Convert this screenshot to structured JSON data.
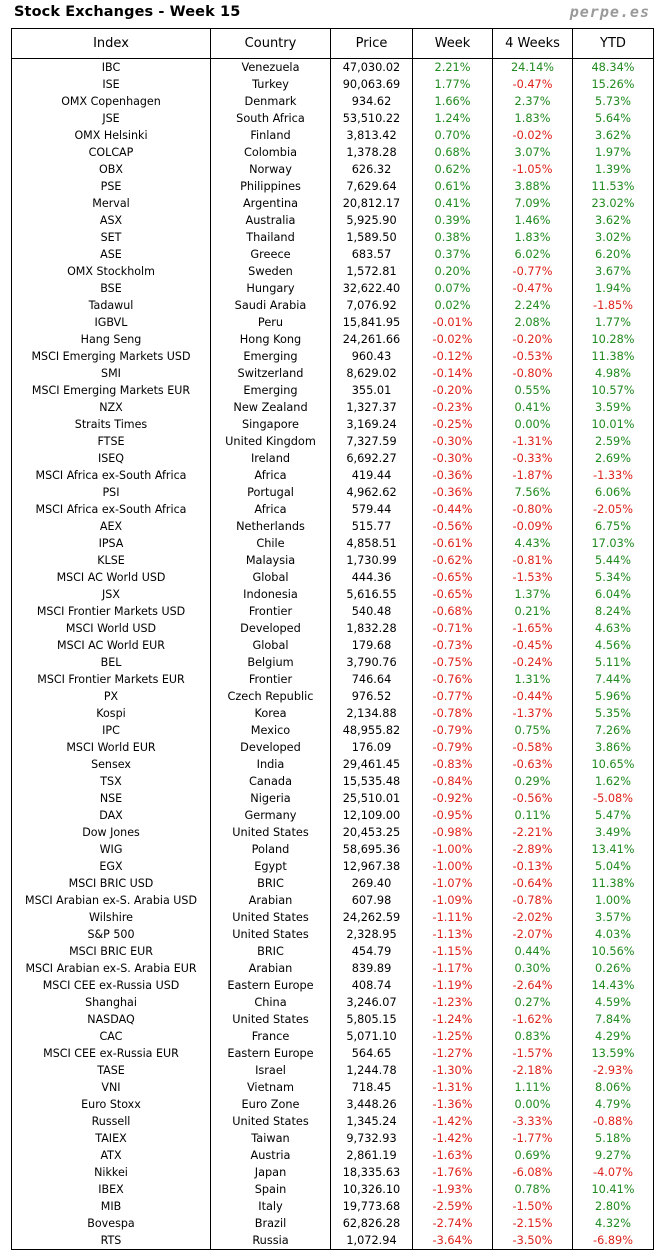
{
  "header": {
    "title": "Stock Exchanges - Week 15",
    "brand": "perpe.es"
  },
  "colors": {
    "positive": "#1f8a1f",
    "negative": "#e0201a"
  },
  "columns": [
    "Index",
    "Country",
    "Price",
    "Week",
    "4 Weeks",
    "YTD"
  ],
  "rows": [
    [
      "IBC",
      "Venezuela",
      "47,030.02",
      "2.21%",
      "24.14%",
      "48.34%"
    ],
    [
      "ISE",
      "Turkey",
      "90,063.69",
      "1.77%",
      "-0.47%",
      "15.26%"
    ],
    [
      "OMX Copenhagen",
      "Denmark",
      "934.62",
      "1.66%",
      "2.37%",
      "5.73%"
    ],
    [
      "JSE",
      "South Africa",
      "53,510.22",
      "1.24%",
      "1.83%",
      "5.64%"
    ],
    [
      "OMX Helsinki",
      "Finland",
      "3,813.42",
      "0.70%",
      "-0.02%",
      "3.62%"
    ],
    [
      "COLCAP",
      "Colombia",
      "1,378.28",
      "0.68%",
      "3.07%",
      "1.97%"
    ],
    [
      "OBX",
      "Norway",
      "626.32",
      "0.62%",
      "-1.05%",
      "1.39%"
    ],
    [
      "PSE",
      "Philippines",
      "7,629.64",
      "0.61%",
      "3.88%",
      "11.53%"
    ],
    [
      "Merval",
      "Argentina",
      "20,812.17",
      "0.41%",
      "7.09%",
      "23.02%"
    ],
    [
      "ASX",
      "Australia",
      "5,925.90",
      "0.39%",
      "1.46%",
      "3.62%"
    ],
    [
      "SET",
      "Thailand",
      "1,589.50",
      "0.38%",
      "1.83%",
      "3.02%"
    ],
    [
      "ASE",
      "Greece",
      "683.57",
      "0.37%",
      "6.02%",
      "6.20%"
    ],
    [
      "OMX Stockholm",
      "Sweden",
      "1,572.81",
      "0.20%",
      "-0.77%",
      "3.67%"
    ],
    [
      "BSE",
      "Hungary",
      "32,622.40",
      "0.07%",
      "-0.47%",
      "1.94%"
    ],
    [
      "Tadawul",
      "Saudi Arabia",
      "7,076.92",
      "0.02%",
      "2.24%",
      "-1.85%"
    ],
    [
      "IGBVL",
      "Peru",
      "15,841.95",
      "-0.01%",
      "2.08%",
      "1.77%"
    ],
    [
      "Hang Seng",
      "Hong Kong",
      "24,261.66",
      "-0.02%",
      "-0.20%",
      "10.28%"
    ],
    [
      "MSCI Emerging Markets USD",
      "Emerging",
      "960.43",
      "-0.12%",
      "-0.53%",
      "11.38%"
    ],
    [
      "SMI",
      "Switzerland",
      "8,629.02",
      "-0.14%",
      "-0.80%",
      "4.98%"
    ],
    [
      "MSCI Emerging Markets EUR",
      "Emerging",
      "355.01",
      "-0.20%",
      "0.55%",
      "10.57%"
    ],
    [
      "NZX",
      "New Zealand",
      "1,327.37",
      "-0.23%",
      "0.41%",
      "3.59%"
    ],
    [
      "Straits Times",
      "Singapore",
      "3,169.24",
      "-0.25%",
      "0.00%",
      "10.01%"
    ],
    [
      "FTSE",
      "United Kingdom",
      "7,327.59",
      "-0.30%",
      "-1.31%",
      "2.59%"
    ],
    [
      "ISEQ",
      "Ireland",
      "6,692.27",
      "-0.30%",
      "-0.33%",
      "2.69%"
    ],
    [
      "MSCI Africa ex-South Africa",
      "Africa",
      "419.44",
      "-0.36%",
      "-1.87%",
      "-1.33%"
    ],
    [
      "PSI",
      "Portugal",
      "4,962.62",
      "-0.36%",
      "7.56%",
      "6.06%"
    ],
    [
      "MSCI Africa ex-South Africa",
      "Africa",
      "579.44",
      "-0.44%",
      "-0.80%",
      "-2.05%"
    ],
    [
      "AEX",
      "Netherlands",
      "515.77",
      "-0.56%",
      "-0.09%",
      "6.75%"
    ],
    [
      "IPSA",
      "Chile",
      "4,858.51",
      "-0.61%",
      "4.43%",
      "17.03%"
    ],
    [
      "KLSE",
      "Malaysia",
      "1,730.99",
      "-0.62%",
      "-0.81%",
      "5.44%"
    ],
    [
      "MSCI AC World USD",
      "Global",
      "444.36",
      "-0.65%",
      "-1.53%",
      "5.34%"
    ],
    [
      "JSX",
      "Indonesia",
      "5,616.55",
      "-0.65%",
      "1.37%",
      "6.04%"
    ],
    [
      "MSCI Frontier Markets USD",
      "Frontier",
      "540.48",
      "-0.68%",
      "0.21%",
      "8.24%"
    ],
    [
      "MSCI World USD",
      "Developed",
      "1,832.28",
      "-0.71%",
      "-1.65%",
      "4.63%"
    ],
    [
      "MSCI AC World EUR",
      "Global",
      "179.68",
      "-0.73%",
      "-0.45%",
      "4.56%"
    ],
    [
      "BEL",
      "Belgium",
      "3,790.76",
      "-0.75%",
      "-0.24%",
      "5.11%"
    ],
    [
      "MSCI Frontier Markets EUR",
      "Frontier",
      "746.64",
      "-0.76%",
      "1.31%",
      "7.44%"
    ],
    [
      "PX",
      "Czech Republic",
      "976.52",
      "-0.77%",
      "-0.44%",
      "5.96%"
    ],
    [
      "Kospi",
      "Korea",
      "2,134.88",
      "-0.78%",
      "-1.37%",
      "5.35%"
    ],
    [
      "IPC",
      "Mexico",
      "48,955.82",
      "-0.79%",
      "0.75%",
      "7.26%"
    ],
    [
      "MSCI World EUR",
      "Developed",
      "176.09",
      "-0.79%",
      "-0.58%",
      "3.86%"
    ],
    [
      "Sensex",
      "India",
      "29,461.45",
      "-0.83%",
      "-0.63%",
      "10.65%"
    ],
    [
      "TSX",
      "Canada",
      "15,535.48",
      "-0.84%",
      "0.29%",
      "1.62%"
    ],
    [
      "NSE",
      "Nigeria",
      "25,510.01",
      "-0.92%",
      "-0.56%",
      "-5.08%"
    ],
    [
      "DAX",
      "Germany",
      "12,109.00",
      "-0.95%",
      "0.11%",
      "5.47%"
    ],
    [
      "Dow Jones",
      "United States",
      "20,453.25",
      "-0.98%",
      "-2.21%",
      "3.49%"
    ],
    [
      "WIG",
      "Poland",
      "58,695.36",
      "-1.00%",
      "-2.89%",
      "13.41%"
    ],
    [
      "EGX",
      "Egypt",
      "12,967.38",
      "-1.00%",
      "-0.13%",
      "5.04%"
    ],
    [
      "MSCI BRIC USD",
      "BRIC",
      "269.40",
      "-1.07%",
      "-0.64%",
      "11.38%"
    ],
    [
      "MSCI Arabian ex-S. Arabia USD",
      "Arabian",
      "607.98",
      "-1.09%",
      "-0.78%",
      "1.00%"
    ],
    [
      "Wilshire",
      "United States",
      "24,262.59",
      "-1.11%",
      "-2.02%",
      "3.57%"
    ],
    [
      "S&P 500",
      "United States",
      "2,328.95",
      "-1.13%",
      "-2.07%",
      "4.03%"
    ],
    [
      "MSCI BRIC EUR",
      "BRIC",
      "454.79",
      "-1.15%",
      "0.44%",
      "10.56%"
    ],
    [
      "MSCI Arabian ex-S. Arabia EUR",
      "Arabian",
      "839.89",
      "-1.17%",
      "0.30%",
      "0.26%"
    ],
    [
      "MSCI CEE ex-Russia USD",
      "Eastern Europe",
      "408.74",
      "-1.19%",
      "-2.64%",
      "14.43%"
    ],
    [
      "Shanghai",
      "China",
      "3,246.07",
      "-1.23%",
      "0.27%",
      "4.59%"
    ],
    [
      "NASDAQ",
      "United States",
      "5,805.15",
      "-1.24%",
      "-1.62%",
      "7.84%"
    ],
    [
      "CAC",
      "France",
      "5,071.10",
      "-1.25%",
      "0.83%",
      "4.29%"
    ],
    [
      "MSCI CEE ex-Russia EUR",
      "Eastern Europe",
      "564.65",
      "-1.27%",
      "-1.57%",
      "13.59%"
    ],
    [
      "TASE",
      "Israel",
      "1,244.78",
      "-1.30%",
      "-2.18%",
      "-2.93%"
    ],
    [
      "VNI",
      "Vietnam",
      "718.45",
      "-1.31%",
      "1.11%",
      "8.06%"
    ],
    [
      "Euro Stoxx",
      "Euro Zone",
      "3,448.26",
      "-1.36%",
      "0.00%",
      "4.79%"
    ],
    [
      "Russell",
      "United States",
      "1,345.24",
      "-1.42%",
      "-3.33%",
      "-0.88%"
    ],
    [
      "TAIEX",
      "Taiwan",
      "9,732.93",
      "-1.42%",
      "-1.77%",
      "5.18%"
    ],
    [
      "ATX",
      "Austria",
      "2,861.19",
      "-1.63%",
      "0.69%",
      "9.27%"
    ],
    [
      "Nikkei",
      "Japan",
      "18,335.63",
      "-1.76%",
      "-6.08%",
      "-4.07%"
    ],
    [
      "IBEX",
      "Spain",
      "10,326.10",
      "-1.93%",
      "0.78%",
      "10.41%"
    ],
    [
      "MIB",
      "Italy",
      "19,773.68",
      "-2.59%",
      "-1.50%",
      "2.80%"
    ],
    [
      "Bovespa",
      "Brazil",
      "62,826.28",
      "-2.74%",
      "-2.15%",
      "4.32%"
    ],
    [
      "RTS",
      "Russia",
      "1,072.94",
      "-3.64%",
      "-3.50%",
      "-6.89%"
    ]
  ]
}
